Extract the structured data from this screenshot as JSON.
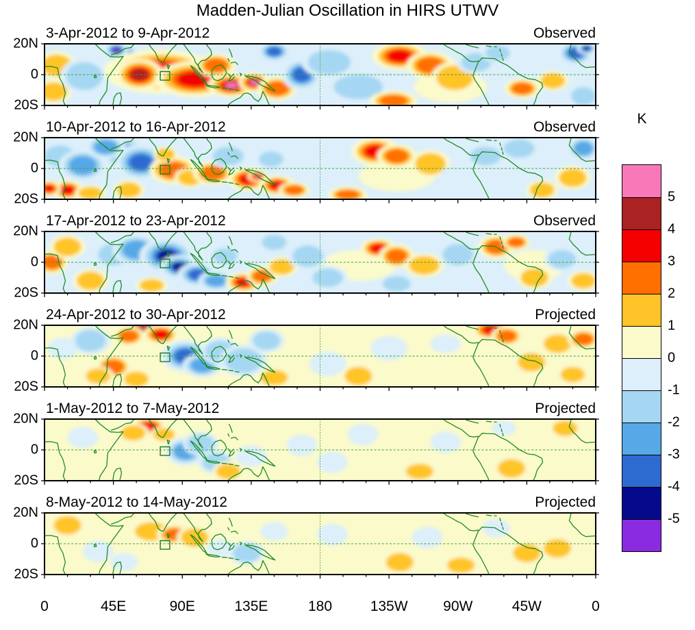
{
  "chart_data": {
    "type": "heatmap",
    "subtype": "filled_contour_anomaly_maps_small_multiples",
    "title": "Madden-Julian Oscillation in HIRS UTWV",
    "units": "K",
    "x_axis": {
      "ticks": [
        "0",
        "45E",
        "90E",
        "135E",
        "180",
        "135W",
        "90W",
        "45W",
        "0"
      ],
      "range_deg": [
        0,
        360
      ]
    },
    "y_axis": {
      "ticks": [
        "20N",
        "0",
        "20S"
      ],
      "range_deg": [
        20,
        -20
      ]
    },
    "colorbar": {
      "title": "K",
      "boundary_labels": [
        "5",
        "4",
        "3",
        "2",
        "1",
        "0",
        "-1",
        "-2",
        "-3",
        "-4",
        "-5"
      ],
      "colors_top_to_bottom": [
        "#F878B8",
        "#AA2222",
        "#F50000",
        "#FF7000",
        "#FFC428",
        "#FBFACB",
        "#DCEFFA",
        "#A6D7F2",
        "#57A8E6",
        "#2E6BD0",
        "#050A8C",
        "#8A2BE2"
      ]
    },
    "level_colors": {
      "pos": [
        "#FBFACB",
        "#FFC428",
        "#FF7000",
        "#F50000",
        "#AA2222",
        "#F878B8"
      ],
      "neg": [
        "#DCEFFA",
        "#A6D7F2",
        "#57A8E6",
        "#2E6BD0",
        "#050A8C",
        "#8A2BE2"
      ]
    },
    "map_colors": {
      "coastline": "#1E8B22",
      "gridline": "#3AA03A",
      "reference_box": "#1F7A24",
      "frame": "#000000"
    },
    "panels": [
      {
        "date_range": "3-Apr-2012 to 9-Apr-2012",
        "status": "Observed",
        "base_level": -1,
        "features": [
          [
            265,
            -8,
            24,
            10,
            1
          ],
          [
            8,
            6,
            10,
            7,
            2
          ],
          [
            6,
            -11,
            9,
            6,
            2
          ],
          [
            26,
            -1,
            12,
            9,
            -2
          ],
          [
            52,
            12,
            9,
            6,
            -5
          ],
          [
            47,
            16,
            6,
            4,
            -6
          ],
          [
            75,
            2,
            28,
            11,
            4
          ],
          [
            62,
            0,
            12,
            8,
            5
          ],
          [
            98,
            -3,
            20,
            9,
            4
          ],
          [
            122,
            -7,
            12,
            6,
            6
          ],
          [
            137,
            -5,
            8,
            5,
            6
          ],
          [
            112,
            6,
            10,
            6,
            3
          ],
          [
            152,
            -9,
            10,
            6,
            3
          ],
          [
            150,
            15,
            8,
            5,
            -4
          ],
          [
            168,
            0,
            10,
            8,
            -4
          ],
          [
            186,
            8,
            14,
            8,
            -2
          ],
          [
            205,
            -8,
            16,
            8,
            -2
          ],
          [
            232,
            12,
            14,
            7,
            4
          ],
          [
            252,
            6,
            12,
            7,
            3
          ],
          [
            268,
            -2,
            12,
            8,
            2
          ],
          [
            228,
            -17,
            12,
            5,
            3
          ],
          [
            282,
            8,
            10,
            6,
            -2
          ],
          [
            312,
            -9,
            9,
            5,
            3
          ],
          [
            332,
            -4,
            8,
            5,
            2
          ],
          [
            347,
            14,
            9,
            6,
            -4
          ],
          [
            354,
            17,
            5,
            3,
            -5
          ],
          [
            352,
            -14,
            8,
            6,
            -2
          ],
          [
            296,
            14,
            8,
            5,
            -2
          ]
        ]
      },
      {
        "date_range": "10-Apr-2012 to 16-Apr-2012",
        "status": "Observed",
        "base_level": -1,
        "features": [
          [
            230,
            -5,
            25,
            10,
            1
          ],
          [
            10,
            8,
            10,
            7,
            -2
          ],
          [
            25,
            2,
            12,
            8,
            -3
          ],
          [
            52,
            10,
            12,
            8,
            -6
          ],
          [
            63,
            4,
            13,
            9,
            -4
          ],
          [
            40,
            14,
            10,
            6,
            -3
          ],
          [
            15,
            -14,
            8,
            5,
            4
          ],
          [
            3,
            -13,
            6,
            4,
            4
          ],
          [
            30,
            -16,
            8,
            4,
            2
          ],
          [
            55,
            -14,
            8,
            5,
            2
          ],
          [
            84,
            -1,
            12,
            7,
            3
          ],
          [
            95,
            -6,
            8,
            5,
            2
          ],
          [
            79,
            9,
            6,
            4,
            2
          ],
          [
            110,
            -3,
            10,
            6,
            3
          ],
          [
            133,
            -7,
            10,
            6,
            4
          ],
          [
            139,
            -5,
            5,
            3,
            6
          ],
          [
            152,
            -11,
            9,
            5,
            4
          ],
          [
            163,
            -14,
            8,
            4,
            3
          ],
          [
            120,
            8,
            10,
            6,
            -2
          ],
          [
            148,
            6,
            8,
            5,
            -2
          ],
          [
            175,
            -2,
            12,
            8,
            -1
          ],
          [
            198,
            -17,
            10,
            4,
            3
          ],
          [
            216,
            11,
            12,
            7,
            4
          ],
          [
            230,
            8,
            10,
            6,
            3
          ],
          [
            252,
            3,
            10,
            7,
            2
          ],
          [
            270,
            -5,
            12,
            7,
            -1
          ],
          [
            288,
            8,
            10,
            6,
            -2
          ],
          [
            310,
            13,
            10,
            6,
            -2
          ],
          [
            352,
            13,
            8,
            6,
            -3
          ],
          [
            345,
            -6,
            9,
            6,
            2
          ],
          [
            325,
            -14,
            8,
            5,
            2
          ]
        ]
      },
      {
        "date_range": "17-Apr-2012 to 23-Apr-2012",
        "status": "Observed",
        "base_level": -1,
        "features": [
          [
            205,
            -2,
            25,
            10,
            1
          ],
          [
            320,
            -2,
            20,
            10,
            1
          ],
          [
            5,
            0,
            8,
            6,
            3
          ],
          [
            15,
            10,
            9,
            6,
            2
          ],
          [
            30,
            -12,
            9,
            6,
            2
          ],
          [
            45,
            5,
            10,
            7,
            -2
          ],
          [
            60,
            8,
            12,
            8,
            -3
          ],
          [
            80,
            4,
            14,
            9,
            -5
          ],
          [
            88,
            -3,
            10,
            6,
            -5
          ],
          [
            100,
            -8,
            10,
            6,
            -4
          ],
          [
            112,
            -12,
            9,
            5,
            -3
          ],
          [
            70,
            -15,
            8,
            4,
            2
          ],
          [
            118,
            4,
            8,
            5,
            -2
          ],
          [
            130,
            -13,
            9,
            5,
            4
          ],
          [
            142,
            -9,
            8,
            5,
            3
          ],
          [
            155,
            -3,
            8,
            5,
            2
          ],
          [
            150,
            13,
            8,
            5,
            -2
          ],
          [
            172,
            4,
            10,
            7,
            -2
          ],
          [
            185,
            -10,
            10,
            6,
            -2
          ],
          [
            218,
            9,
            9,
            5,
            4
          ],
          [
            230,
            4,
            9,
            6,
            3
          ],
          [
            248,
            -2,
            10,
            6,
            2
          ],
          [
            230,
            -14,
            9,
            5,
            -2
          ],
          [
            270,
            5,
            10,
            7,
            -2
          ],
          [
            295,
            10,
            9,
            6,
            3
          ],
          [
            308,
            13,
            7,
            4,
            3
          ],
          [
            320,
            -10,
            9,
            6,
            2
          ],
          [
            338,
            2,
            9,
            6,
            -2
          ],
          [
            352,
            -12,
            8,
            5,
            2
          ]
        ]
      },
      {
        "date_range": "24-Apr-2012 to 30-Apr-2012",
        "status": "Projected",
        "base_level": 1,
        "features": [
          [
            12,
            5,
            10,
            7,
            -1
          ],
          [
            30,
            10,
            10,
            7,
            -2
          ],
          [
            66,
            17,
            12,
            6,
            5
          ],
          [
            76,
            14,
            9,
            5,
            4
          ],
          [
            55,
            13,
            8,
            5,
            3
          ],
          [
            45,
            -7,
            9,
            6,
            3
          ],
          [
            35,
            -13,
            8,
            5,
            2
          ],
          [
            60,
            -15,
            8,
            5,
            2
          ],
          [
            92,
            0,
            12,
            8,
            -4
          ],
          [
            103,
            -6,
            10,
            6,
            -3
          ],
          [
            115,
            3,
            10,
            7,
            -2
          ],
          [
            130,
            -3,
            12,
            8,
            -2
          ],
          [
            150,
            -14,
            9,
            5,
            2
          ],
          [
            145,
            10,
            9,
            6,
            -2
          ],
          [
            185,
            -5,
            12,
            8,
            -1
          ],
          [
            205,
            -13,
            9,
            6,
            2
          ],
          [
            225,
            5,
            12,
            8,
            -1
          ],
          [
            262,
            8,
            10,
            6,
            -1
          ],
          [
            292,
            17,
            10,
            5,
            4
          ],
          [
            302,
            13,
            8,
            5,
            3
          ],
          [
            318,
            -4,
            9,
            6,
            2
          ],
          [
            335,
            8,
            9,
            6,
            2
          ],
          [
            352,
            11,
            8,
            5,
            3
          ],
          [
            345,
            -12,
            8,
            5,
            2
          ]
        ]
      },
      {
        "date_range": "1-May-2012 to 7-May-2012",
        "status": "Projected",
        "base_level": 1,
        "features": [
          [
            25,
            8,
            10,
            7,
            -1
          ],
          [
            68,
            15,
            9,
            5,
            4
          ],
          [
            58,
            11,
            8,
            5,
            2
          ],
          [
            78,
            10,
            7,
            4,
            2
          ],
          [
            92,
            -1,
            10,
            7,
            -3
          ],
          [
            102,
            4,
            9,
            6,
            -2
          ],
          [
            112,
            -8,
            9,
            6,
            -2
          ],
          [
            120,
            -14,
            8,
            5,
            2
          ],
          [
            135,
            -4,
            10,
            7,
            -1
          ],
          [
            168,
            3,
            10,
            7,
            -1
          ],
          [
            188,
            -8,
            10,
            7,
            -1
          ],
          [
            208,
            10,
            10,
            7,
            -1
          ],
          [
            245,
            -14,
            9,
            5,
            2
          ],
          [
            262,
            5,
            10,
            7,
            -1
          ],
          [
            305,
            -12,
            9,
            6,
            2
          ],
          [
            322,
            6,
            9,
            6,
            1
          ],
          [
            340,
            14,
            8,
            5,
            2
          ],
          [
            300,
            14,
            8,
            5,
            -1
          ]
        ]
      },
      {
        "date_range": "8-May-2012 to 14-May-2012",
        "status": "Projected",
        "base_level": 1,
        "features": [
          [
            15,
            12,
            9,
            6,
            2
          ],
          [
            35,
            -5,
            10,
            7,
            -1
          ],
          [
            52,
            -12,
            9,
            6,
            -1
          ],
          [
            70,
            8,
            11,
            6,
            2
          ],
          [
            85,
            6,
            9,
            5,
            3
          ],
          [
            98,
            4,
            9,
            6,
            2
          ],
          [
            115,
            -3,
            9,
            6,
            -1
          ],
          [
            132,
            -6,
            9,
            6,
            -2
          ],
          [
            150,
            8,
            9,
            6,
            -1
          ],
          [
            188,
            6,
            10,
            7,
            -1
          ],
          [
            210,
            -10,
            10,
            7,
            1
          ],
          [
            232,
            -12,
            9,
            6,
            2
          ],
          [
            250,
            4,
            10,
            7,
            -1
          ],
          [
            272,
            -14,
            9,
            5,
            2
          ],
          [
            295,
            10,
            9,
            6,
            -1
          ],
          [
            315,
            -6,
            9,
            6,
            2
          ],
          [
            335,
            -3,
            9,
            6,
            2
          ],
          [
            350,
            12,
            8,
            5,
            1
          ]
        ]
      }
    ]
  }
}
